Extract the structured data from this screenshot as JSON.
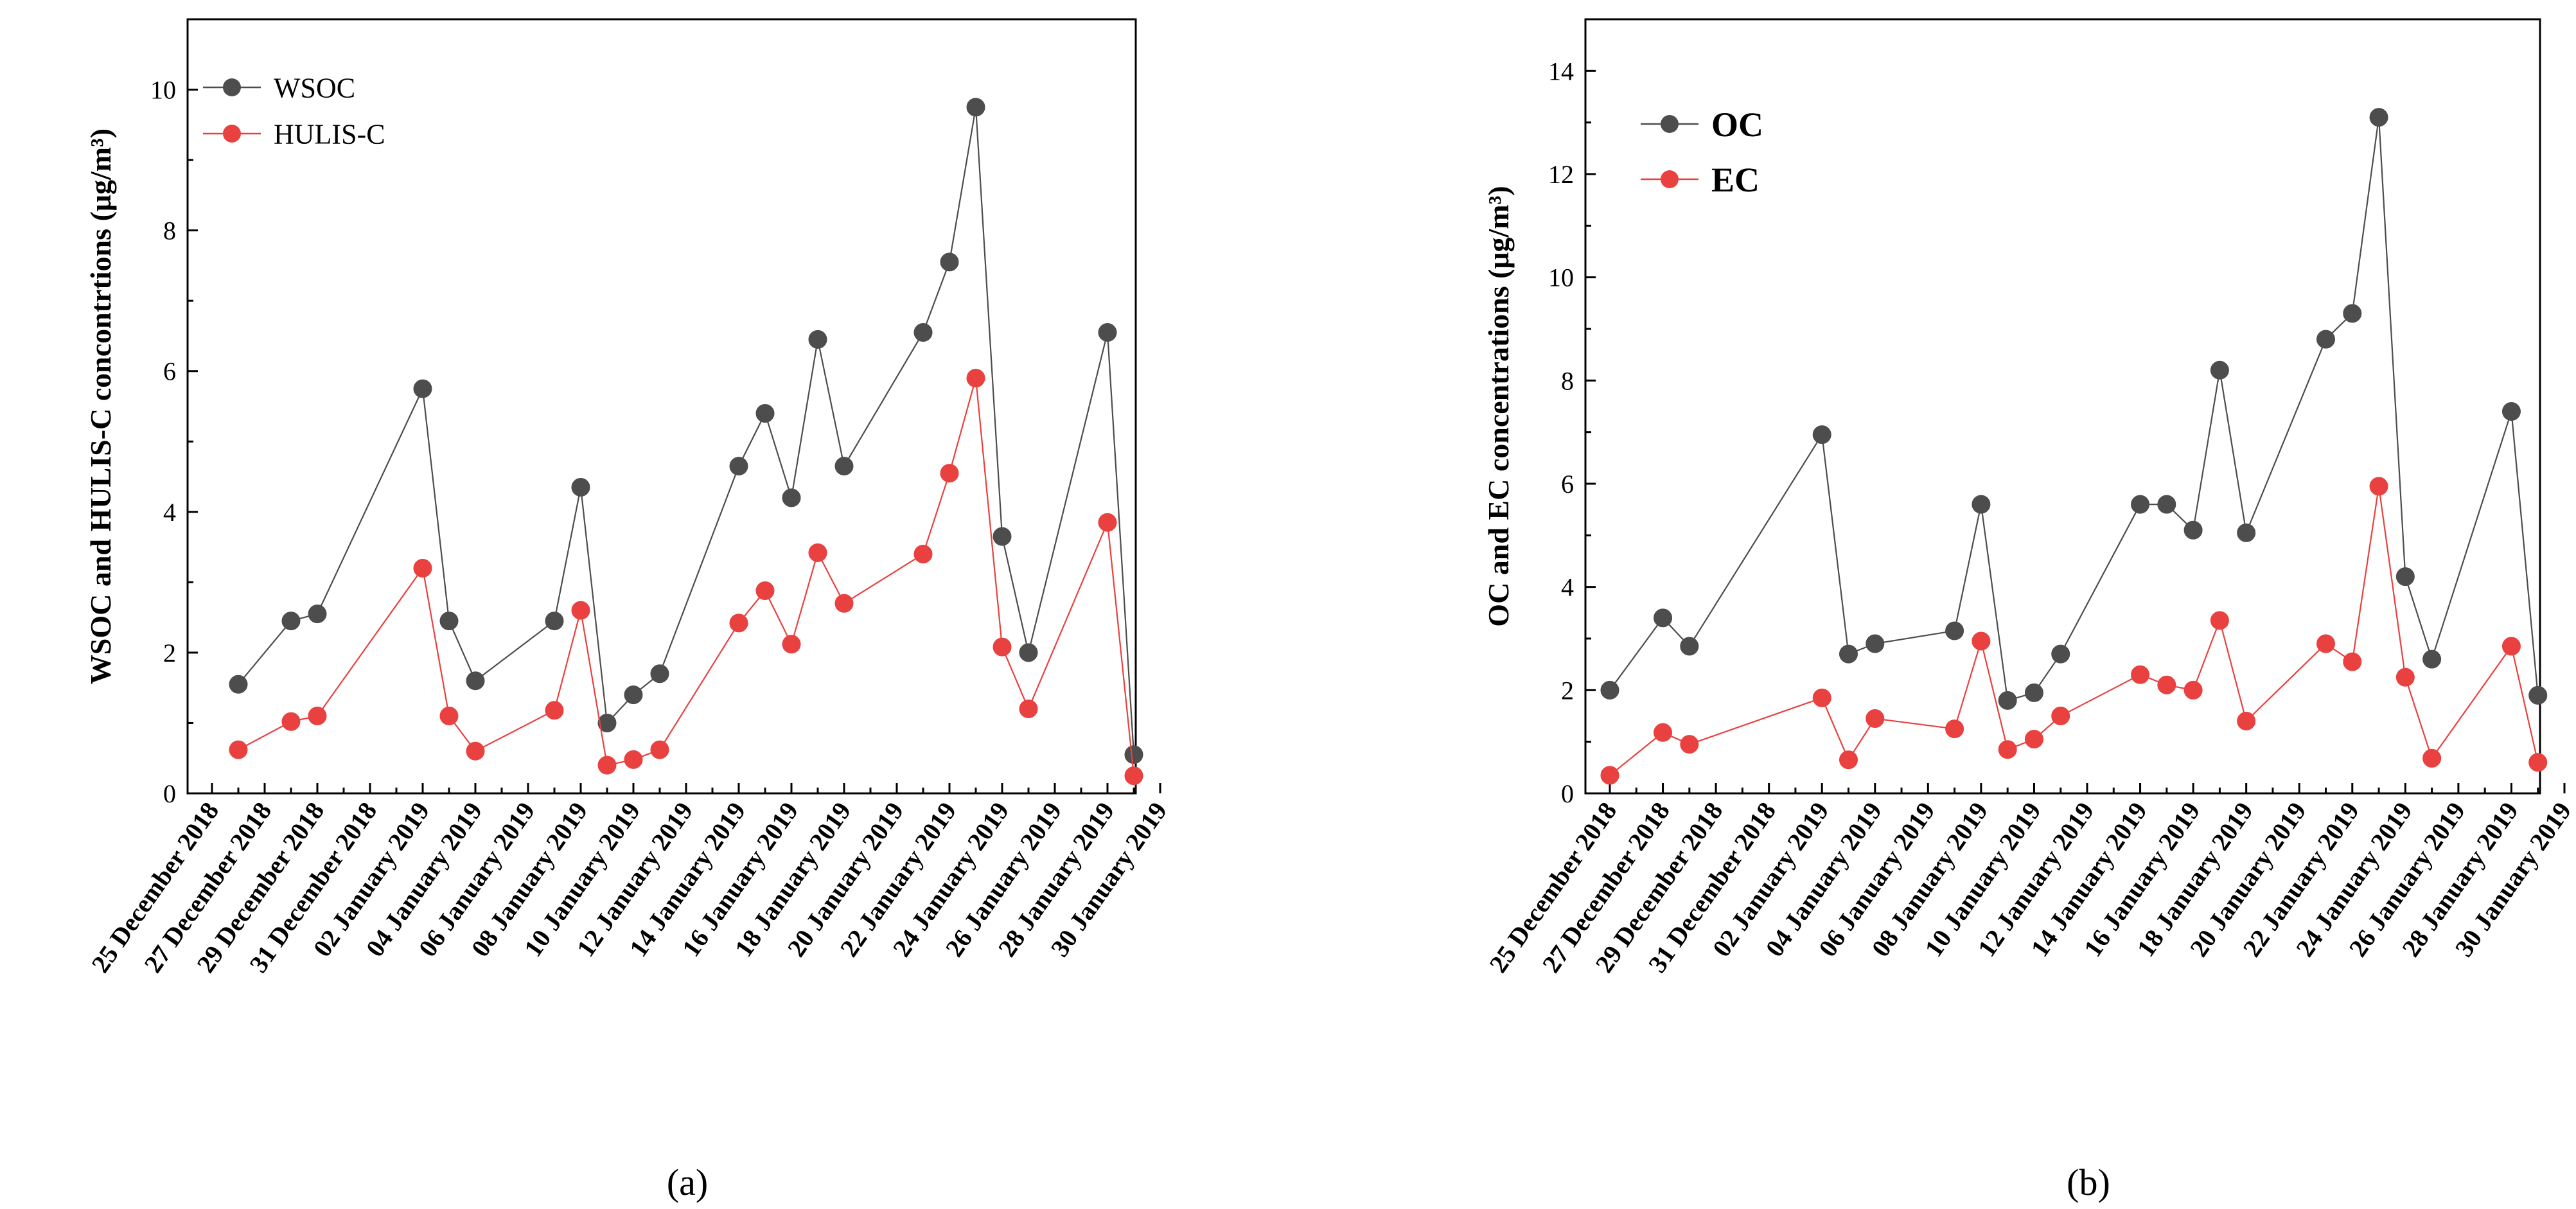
{
  "colors": {
    "series_gray": "#4d4d4d",
    "series_red": "#e8413f",
    "axis": "#000000"
  },
  "tick_labels": [
    "25 December 2018",
    "27 December 2018",
    "29 December 2018",
    "31 December 2018",
    "02 January 2019",
    "04 January 2019",
    "06 January 2019",
    "08 January 2019",
    "10 January 2019",
    "12 January 2019",
    "14 January 2019",
    "16 January 2019",
    "18 January 2019",
    "20 January 2019",
    "22 January 2019",
    "24 January 2019",
    "26 January 2019",
    "28 January 2019",
    "30 January 2019"
  ],
  "chart_data": [
    {
      "type": "line",
      "panel_label": "(a)",
      "ylabel": "WSOC  and HULIS-C concontrtions (μg/m³)",
      "ylim": [
        0,
        11
      ],
      "yticks": [
        0,
        2,
        4,
        6,
        8,
        10
      ],
      "x_dates": [
        "2018-12-26",
        "2018-12-28",
        "2018-12-29",
        "2019-01-02",
        "2019-01-03",
        "2019-01-04",
        "2019-01-07",
        "2019-01-08",
        "2019-01-09",
        "2019-01-10",
        "2019-01-11",
        "2019-01-14",
        "2019-01-15",
        "2019-01-16",
        "2019-01-17",
        "2019-01-18",
        "2019-01-21",
        "2019-01-22",
        "2019-01-23",
        "2019-01-24",
        "2019-01-25",
        "2019-01-28",
        "2019-01-29"
      ],
      "series": [
        {
          "name": "WSOC",
          "color": "#4d4d4d",
          "values": [
            1.55,
            2.45,
            2.55,
            5.75,
            2.45,
            1.6,
            2.45,
            4.35,
            1.0,
            1.4,
            1.7,
            4.65,
            5.4,
            4.2,
            6.45,
            4.65,
            6.55,
            7.55,
            9.75,
            3.65,
            2.0,
            6.55,
            0.55
          ]
        },
        {
          "name": "HULIS-C",
          "color": "#e8413f",
          "values": [
            0.62,
            1.02,
            1.1,
            3.2,
            1.1,
            0.6,
            1.18,
            2.6,
            0.4,
            0.48,
            0.62,
            2.42,
            2.88,
            2.12,
            3.42,
            2.7,
            3.4,
            4.55,
            5.9,
            2.08,
            1.2,
            3.85,
            0.25
          ]
        }
      ],
      "legend": "top-left"
    },
    {
      "type": "line",
      "panel_label": "(b)",
      "ylabel": "OC and  EC concentrations (μg/m³)",
      "ylim": [
        0,
        15
      ],
      "yticks": [
        0,
        2,
        4,
        6,
        8,
        10,
        12,
        14
      ],
      "x_dates": [
        "2018-12-25",
        "2018-12-27",
        "2018-12-28",
        "2019-01-02",
        "2019-01-03",
        "2019-01-04",
        "2019-01-07",
        "2019-01-08",
        "2019-01-09",
        "2019-01-10",
        "2019-01-11",
        "2019-01-14",
        "2019-01-15",
        "2019-01-16",
        "2019-01-17",
        "2019-01-18",
        "2019-01-21",
        "2019-01-22",
        "2019-01-23",
        "2019-01-24",
        "2019-01-25",
        "2019-01-28",
        "2019-01-29"
      ],
      "series": [
        {
          "name": "OC",
          "color": "#4d4d4d",
          "values": [
            2.0,
            3.4,
            2.85,
            6.95,
            2.7,
            2.9,
            3.15,
            5.6,
            1.8,
            1.95,
            2.7,
            5.6,
            5.6,
            5.1,
            8.2,
            5.05,
            8.8,
            9.3,
            13.1,
            4.2,
            2.6,
            7.4,
            1.9
          ]
        },
        {
          "name": "EC",
          "color": "#e8413f",
          "values": [
            0.35,
            1.18,
            0.95,
            1.85,
            0.65,
            1.45,
            1.25,
            2.95,
            0.85,
            1.05,
            1.5,
            2.3,
            2.1,
            2.0,
            3.35,
            1.4,
            2.9,
            2.55,
            5.95,
            2.25,
            0.68,
            2.85,
            0.6
          ]
        }
      ],
      "legend": "top-left"
    }
  ]
}
